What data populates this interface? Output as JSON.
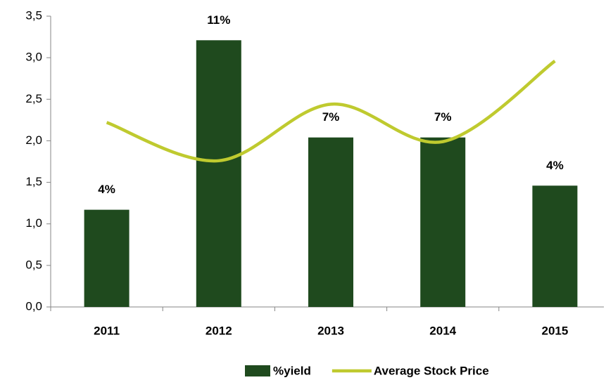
{
  "chart_data": {
    "type": "bar-line",
    "categories": [
      "2011",
      "2012",
      "2013",
      "2014",
      "2015"
    ],
    "series": [
      {
        "name": "%yield",
        "type": "bar",
        "color": "#1f4a1e",
        "values": [
          1.17,
          3.21,
          2.04,
          2.04,
          1.46
        ],
        "value_labels": [
          "4%",
          "11%",
          "7%",
          "7%",
          "4%"
        ]
      },
      {
        "name": "Average Stock Price",
        "type": "line",
        "color": "#bfca2f",
        "values": [
          2.22,
          1.76,
          2.44,
          1.99,
          2.96
        ]
      }
    ],
    "ylim": [
      0,
      3.5
    ],
    "yticks": [
      {
        "value": 0,
        "label": "0,0"
      },
      {
        "value": 0.5,
        "label": "0,5"
      },
      {
        "value": 1,
        "label": "1,0"
      },
      {
        "value": 1.5,
        "label": "1,5"
      },
      {
        "value": 2,
        "label": "2,0"
      },
      {
        "value": 2.5,
        "label": "2,5"
      },
      {
        "value": 3,
        "label": "3,0"
      },
      {
        "value": 3.5,
        "label": "3,5"
      }
    ],
    "grid": false,
    "legend": "bottom"
  }
}
